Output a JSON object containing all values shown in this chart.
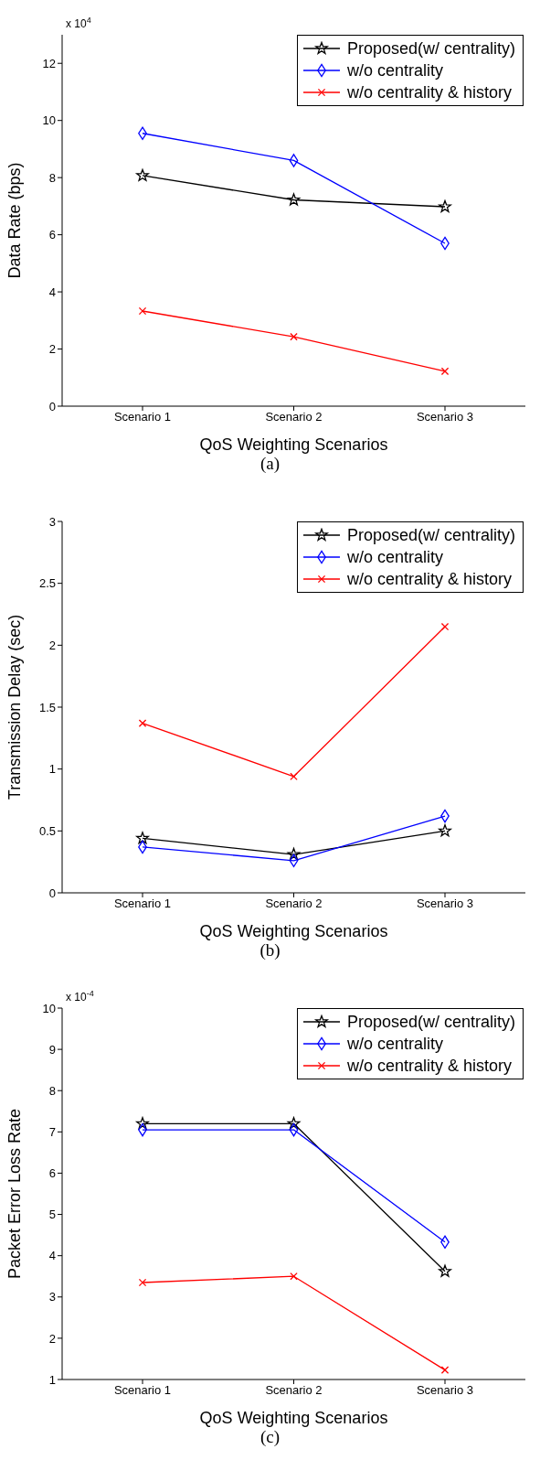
{
  "chart_data": [
    {
      "type": "line",
      "title": "(a)",
      "xlabel": "QoS Weighting Scenarios",
      "ylabel": "Data Rate (bps)",
      "annotations": [
        "x 10$^{4}$"
      ],
      "categories": [
        "Scenario 1",
        "Scenario 2",
        "Scenario 3"
      ],
      "ylim": [
        0,
        13
      ],
      "yticks": [
        0,
        2,
        4,
        6,
        8,
        10,
        12
      ],
      "legend": "top right",
      "series": [
        {
          "name": "Proposed(w/ centrality)",
          "color": "#000000",
          "marker": "star",
          "values": [
            8.07,
            7.22,
            6.98
          ]
        },
        {
          "name": "w/o centrality",
          "color": "#0000ff",
          "marker": "diamond",
          "values": [
            9.55,
            8.6,
            5.7
          ]
        },
        {
          "name": "w/o centrality & history",
          "color": "#ff0000",
          "marker": "cross",
          "values": [
            3.33,
            2.43,
            1.22
          ]
        }
      ]
    },
    {
      "type": "line",
      "title": "(b)",
      "xlabel": "QoS Weighting Scenarios",
      "ylabel": "Transmission Delay (sec)",
      "categories": [
        "Scenario 1",
        "Scenario 2",
        "Scenario 3"
      ],
      "ylim": [
        0,
        3
      ],
      "yticks": [
        0,
        0.5,
        1,
        1.5,
        2,
        2.5,
        3
      ],
      "legend": "top right",
      "series": [
        {
          "name": "Proposed(w/ centrality)",
          "color": "#000000",
          "marker": "star",
          "values": [
            0.44,
            0.31,
            0.5
          ]
        },
        {
          "name": "w/o centrality",
          "color": "#0000ff",
          "marker": "diamond",
          "values": [
            0.37,
            0.26,
            0.62
          ]
        },
        {
          "name": "w/o centrality & history",
          "color": "#ff0000",
          "marker": "cross",
          "values": [
            1.37,
            0.94,
            2.15
          ]
        }
      ]
    },
    {
      "type": "line",
      "title": "(c)",
      "xlabel": "QoS Weighting Scenarios",
      "ylabel": "Packet Error Loss Rate",
      "annotations": [
        "x 10$^{-4}$"
      ],
      "categories": [
        "Scenario 1",
        "Scenario 2",
        "Scenario 3"
      ],
      "ylim": [
        1,
        10
      ],
      "yticks": [
        1,
        2,
        3,
        4,
        5,
        6,
        7,
        8,
        9,
        10
      ],
      "legend": "top right",
      "series": [
        {
          "name": "Proposed(w/ centrality)",
          "color": "#000000",
          "marker": "star",
          "values": [
            7.2,
            7.2,
            3.62
          ]
        },
        {
          "name": "w/o centrality",
          "color": "#0000ff",
          "marker": "diamond",
          "values": [
            7.05,
            7.05,
            4.33
          ]
        },
        {
          "name": "w/o centrality & history",
          "color": "#ff0000",
          "marker": "cross",
          "values": [
            3.35,
            3.5,
            1.23
          ]
        }
      ]
    }
  ]
}
